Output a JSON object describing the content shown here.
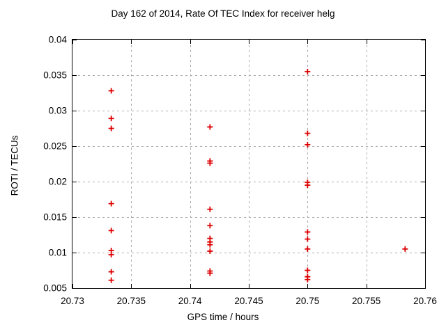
{
  "colors": {
    "marker": "#dd0000",
    "grid": "#ababab",
    "axis": "#000000",
    "text": "#000000",
    "background": "#ffffff"
  },
  "chart_data": {
    "type": "scatter",
    "title": "Day 162 of 2014, Rate Of TEC Index for receiver helg",
    "xlabel": "GPS time / hours",
    "ylabel": "ROTI / TECUs",
    "xlim": [
      20.73,
      20.76
    ],
    "ylim": [
      0.005,
      0.04
    ],
    "xticks": [
      20.73,
      20.735,
      20.74,
      20.745,
      20.75,
      20.755,
      20.76
    ],
    "xtick_labels": [
      "20.73",
      "20.735",
      "20.74",
      "20.745",
      "20.75",
      "20.755",
      "20.76"
    ],
    "yticks": [
      0.005,
      0.01,
      0.015,
      0.02,
      0.025,
      0.03,
      0.035,
      0.04
    ],
    "ytick_labels": [
      "0.005",
      "0.01",
      "0.015",
      "0.02",
      "0.025",
      "0.03",
      "0.035",
      "0.04"
    ],
    "grid": true,
    "legend": "none",
    "marker": {
      "shape": "plus",
      "color": "#dd0000",
      "size": 9
    },
    "series": [
      {
        "name": "ROTI",
        "points": [
          [
            20.7333,
            0.0328
          ],
          [
            20.7333,
            0.0289
          ],
          [
            20.7333,
            0.0275
          ],
          [
            20.7333,
            0.0169
          ],
          [
            20.7333,
            0.0131
          ],
          [
            20.7333,
            0.0103
          ],
          [
            20.7333,
            0.0097
          ],
          [
            20.7333,
            0.0073
          ],
          [
            20.7333,
            0.0061
          ],
          [
            20.7417,
            0.0277
          ],
          [
            20.7417,
            0.0229
          ],
          [
            20.7417,
            0.0226
          ],
          [
            20.7417,
            0.0161
          ],
          [
            20.7417,
            0.0138
          ],
          [
            20.7417,
            0.012
          ],
          [
            20.7417,
            0.0115
          ],
          [
            20.7417,
            0.0111
          ],
          [
            20.7417,
            0.0102
          ],
          [
            20.7417,
            0.0074
          ],
          [
            20.7417,
            0.0071
          ],
          [
            20.75,
            0.0355
          ],
          [
            20.75,
            0.0268
          ],
          [
            20.75,
            0.0252
          ],
          [
            20.75,
            0.0199
          ],
          [
            20.75,
            0.0195
          ],
          [
            20.75,
            0.0129
          ],
          [
            20.75,
            0.0119
          ],
          [
            20.75,
            0.0105
          ],
          [
            20.75,
            0.0075
          ],
          [
            20.75,
            0.0066
          ],
          [
            20.75,
            0.0062
          ],
          [
            20.7583,
            0.0105
          ]
        ]
      }
    ]
  }
}
